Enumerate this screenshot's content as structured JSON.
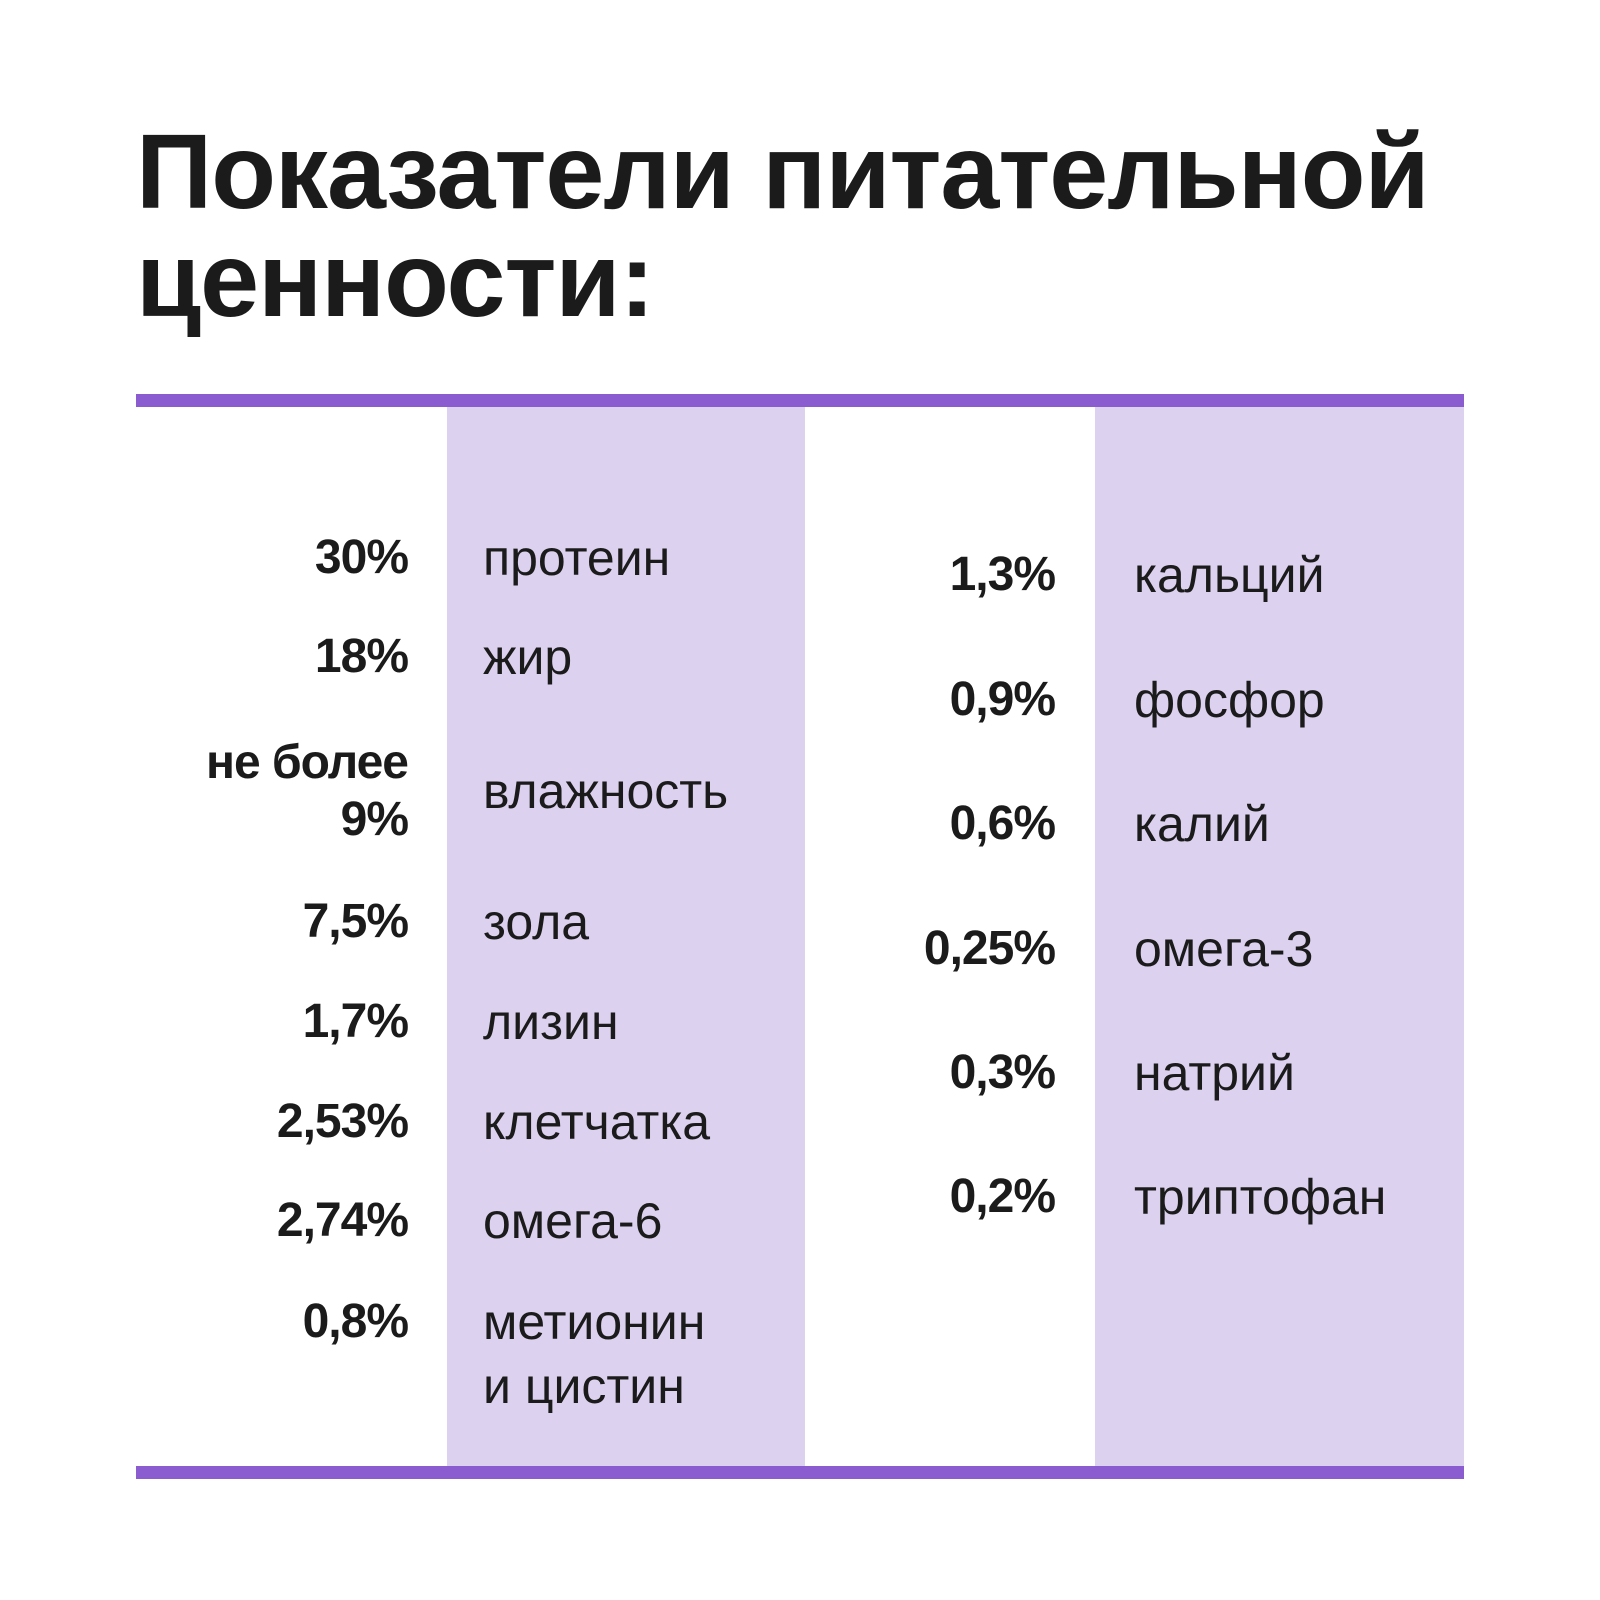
{
  "title": {
    "line1": "Показатели питательной",
    "line2": "ценности:"
  },
  "left_column": [
    {
      "value": "30%",
      "name": "протеин"
    },
    {
      "value": "18%",
      "name": "жир"
    },
    {
      "value_line1": "не более",
      "value_line2": "9%",
      "name": "влажность"
    },
    {
      "value": "7,5%",
      "name": "зола"
    },
    {
      "value": "1,7%",
      "name": "лизин"
    },
    {
      "value": "2,53%",
      "name": "клетчатка"
    },
    {
      "value": "2,74%",
      "name": "омега-6"
    },
    {
      "value": "0,8%",
      "name_line1": "метионин",
      "name_line2": "и цистин"
    }
  ],
  "right_column": [
    {
      "value": "1,3%",
      "name": "кальций"
    },
    {
      "value": "0,9%",
      "name": "фосфор"
    },
    {
      "value": "0,6%",
      "name": "калий"
    },
    {
      "value": "0,25%",
      "name": "омега-3"
    },
    {
      "value": "0,3%",
      "name": "натрий"
    },
    {
      "value": "0,2%",
      "name": "триптофан"
    }
  ],
  "colors": {
    "accent_rule": "#8a5cd0",
    "band": "#dcd1ef",
    "text": "#1b1b1b"
  }
}
